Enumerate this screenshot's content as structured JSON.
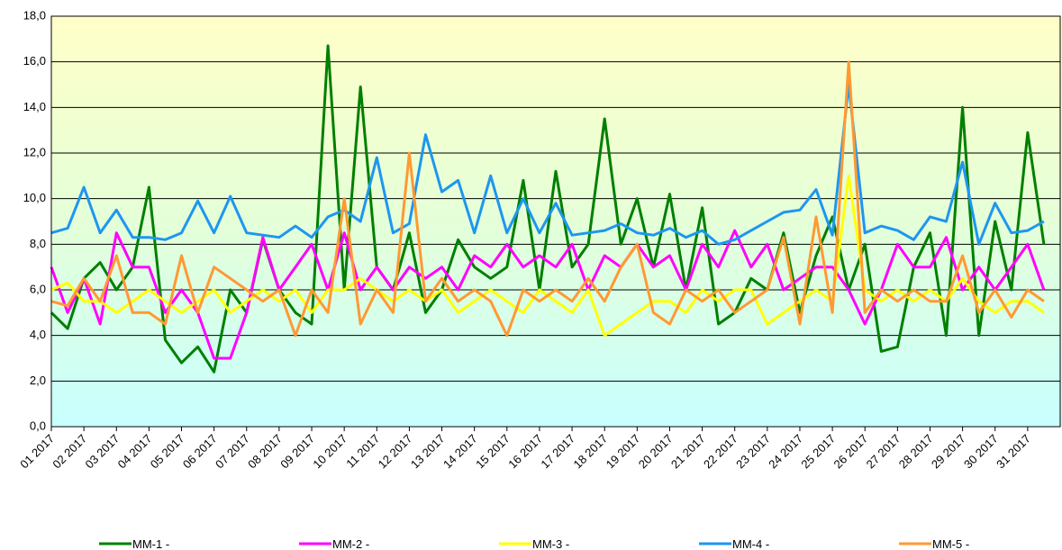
{
  "chart_data": {
    "type": "line",
    "x": [
      1,
      1.5,
      2,
      2.5,
      3,
      3.5,
      4,
      4.5,
      5,
      5.5,
      6,
      6.5,
      7,
      7.5,
      8,
      8.5,
      9,
      9.5,
      10,
      10.5,
      11,
      11.5,
      12,
      12.5,
      13,
      13.5,
      14,
      14.5,
      15,
      15.5,
      16,
      16.5,
      17,
      17.5,
      18,
      18.5,
      19,
      19.5,
      20,
      20.5,
      21,
      21.5,
      22,
      22.5,
      23,
      23.5,
      24,
      24.5,
      25,
      25.5,
      26,
      26.5,
      27,
      27.5,
      28,
      28.5,
      29,
      29.5,
      30,
      30.5,
      31,
      31.5
    ],
    "series": [
      {
        "name": "MM-1 -",
        "color": "#007f00",
        "values": [
          5,
          4.3,
          6.5,
          7.2,
          6,
          7,
          10.5,
          3.8,
          2.8,
          3.5,
          2.4,
          6,
          5,
          8.2,
          6,
          5,
          4.5,
          16.7,
          6,
          14.9,
          7,
          6,
          8.5,
          5,
          6,
          8.2,
          7,
          6.5,
          7,
          10.8,
          6,
          11.2,
          7,
          8,
          13.5,
          8,
          10,
          7,
          10.2,
          6,
          9.6,
          4.5,
          5,
          6.5,
          6,
          8.5,
          5,
          7.5,
          9.2,
          6,
          8,
          3.3,
          3.5,
          7,
          8.5,
          4,
          14,
          4,
          9,
          6,
          12.9,
          8
        ]
      },
      {
        "name": "MM-2 -",
        "color": "#ff00ff",
        "values": [
          7,
          5,
          6.5,
          4.5,
          8.5,
          7,
          7,
          5,
          6,
          5,
          3,
          3,
          5,
          8.3,
          6,
          7,
          8,
          6,
          8.5,
          6,
          7,
          6,
          7,
          6.5,
          7,
          6,
          7.5,
          7,
          8,
          7,
          7.5,
          7,
          8,
          6,
          7.5,
          7,
          8,
          7,
          7.5,
          6,
          8,
          7,
          8.6,
          7,
          8,
          6,
          6.5,
          7,
          7,
          6,
          4.5,
          6,
          8,
          7,
          7,
          8.3,
          6,
          7,
          6,
          7,
          8,
          6
        ]
      },
      {
        "name": "MM-3 -",
        "color": "#ffff00",
        "values": [
          6,
          6.3,
          5.5,
          5.5,
          5,
          5.5,
          6,
          5.5,
          5,
          5.5,
          6,
          5,
          5.5,
          6,
          5.5,
          6,
          5,
          6,
          6,
          6.5,
          6,
          5.5,
          6,
          5.5,
          6,
          5,
          5.5,
          6,
          5.5,
          5,
          6,
          5.5,
          5,
          6,
          4,
          4.5,
          5,
          5.5,
          5.5,
          5,
          6,
          5.5,
          6,
          6,
          4.5,
          5,
          5.5,
          6,
          5.5,
          11,
          6,
          5.5,
          6,
          5.5,
          6,
          5.5,
          6.5,
          5.5,
          5,
          5.5,
          5.5,
          5
        ]
      },
      {
        "name": "MM-4 -",
        "color": "#1e96f0",
        "values": [
          8.5,
          8.7,
          10.5,
          8.5,
          9.5,
          8.3,
          8.3,
          8.2,
          8.5,
          9.9,
          8.5,
          10.1,
          8.5,
          8.4,
          8.3,
          8.8,
          8.3,
          9.2,
          9.5,
          9,
          11.8,
          8.5,
          8.9,
          12.8,
          10.3,
          10.8,
          8.5,
          11,
          8.5,
          10,
          8.5,
          9.8,
          8.4,
          8.5,
          8.6,
          8.9,
          8.5,
          8.4,
          8.7,
          8.3,
          8.6,
          8,
          8.2,
          8.6,
          9,
          9.4,
          9.5,
          10.4,
          8.4,
          15,
          8.5,
          8.8,
          8.6,
          8.2,
          9.2,
          9,
          11.6,
          8,
          9.8,
          8.5,
          8.6,
          9
        ]
      },
      {
        "name": "MM-5 -",
        "color": "#ff9933",
        "values": [
          5.5,
          5.3,
          6.5,
          5.5,
          7.5,
          5,
          5,
          4.5,
          7.5,
          5,
          7,
          6.5,
          6,
          5.5,
          6,
          4,
          6,
          5,
          10,
          4.5,
          6,
          5,
          12,
          5.5,
          6.5,
          5.5,
          6,
          5.5,
          4,
          6,
          5.5,
          6,
          5.5,
          6.5,
          5.5,
          7,
          8,
          5,
          4.5,
          6,
          5.5,
          6,
          5,
          5.5,
          6,
          8.3,
          4.5,
          9.2,
          5,
          16,
          5,
          6,
          5.5,
          6,
          5.5,
          5.5,
          7.5,
          5,
          6,
          4.8,
          6,
          5.5
        ]
      }
    ],
    "xlim": [
      1,
      32
    ],
    "xticks": [
      {
        "value": 1,
        "label": "01 2017"
      },
      {
        "value": 2,
        "label": "02 2017"
      },
      {
        "value": 3,
        "label": "03 2017"
      },
      {
        "value": 4,
        "label": "04 2017"
      },
      {
        "value": 5,
        "label": "05 2017"
      },
      {
        "value": 6,
        "label": "06 2017"
      },
      {
        "value": 7,
        "label": "07 2017"
      },
      {
        "value": 8,
        "label": "08 2017"
      },
      {
        "value": 9,
        "label": "09 2017"
      },
      {
        "value": 10,
        "label": "10 2017"
      },
      {
        "value": 11,
        "label": "11 2017"
      },
      {
        "value": 12,
        "label": "12 2017"
      },
      {
        "value": 13,
        "label": "13 2017"
      },
      {
        "value": 14,
        "label": "14 2017"
      },
      {
        "value": 15,
        "label": "15 2017"
      },
      {
        "value": 16,
        "label": "16 2017"
      },
      {
        "value": 17,
        "label": "17 2017"
      },
      {
        "value": 18,
        "label": "18 2017"
      },
      {
        "value": 19,
        "label": "19 2017"
      },
      {
        "value": 20,
        "label": "20 2017"
      },
      {
        "value": 21,
        "label": "21 2017"
      },
      {
        "value": 22,
        "label": "22 2017"
      },
      {
        "value": 23,
        "label": "23 2017"
      },
      {
        "value": 24,
        "label": "24 2017"
      },
      {
        "value": 25,
        "label": "25 2017"
      },
      {
        "value": 26,
        "label": "26 2017"
      },
      {
        "value": 27,
        "label": "27 2017"
      },
      {
        "value": 28,
        "label": "28 2017"
      },
      {
        "value": 29,
        "label": "29 2017"
      },
      {
        "value": 30,
        "label": "30 2017"
      },
      {
        "value": 31,
        "label": "31 2017"
      }
    ],
    "ylim": [
      0,
      18
    ],
    "yticks": [
      {
        "value": 0,
        "label": "0,0"
      },
      {
        "value": 2,
        "label": "2,0"
      },
      {
        "value": 4,
        "label": "4,0"
      },
      {
        "value": 6,
        "label": "6,0"
      },
      {
        "value": 8,
        "label": "8,0"
      },
      {
        "value": 10,
        "label": "10,0"
      },
      {
        "value": 12,
        "label": "12,0"
      },
      {
        "value": 14,
        "label": "14,0"
      },
      {
        "value": 16,
        "label": "16,0"
      },
      {
        "value": 18,
        "label": "18,0"
      }
    ],
    "grid": true
  }
}
